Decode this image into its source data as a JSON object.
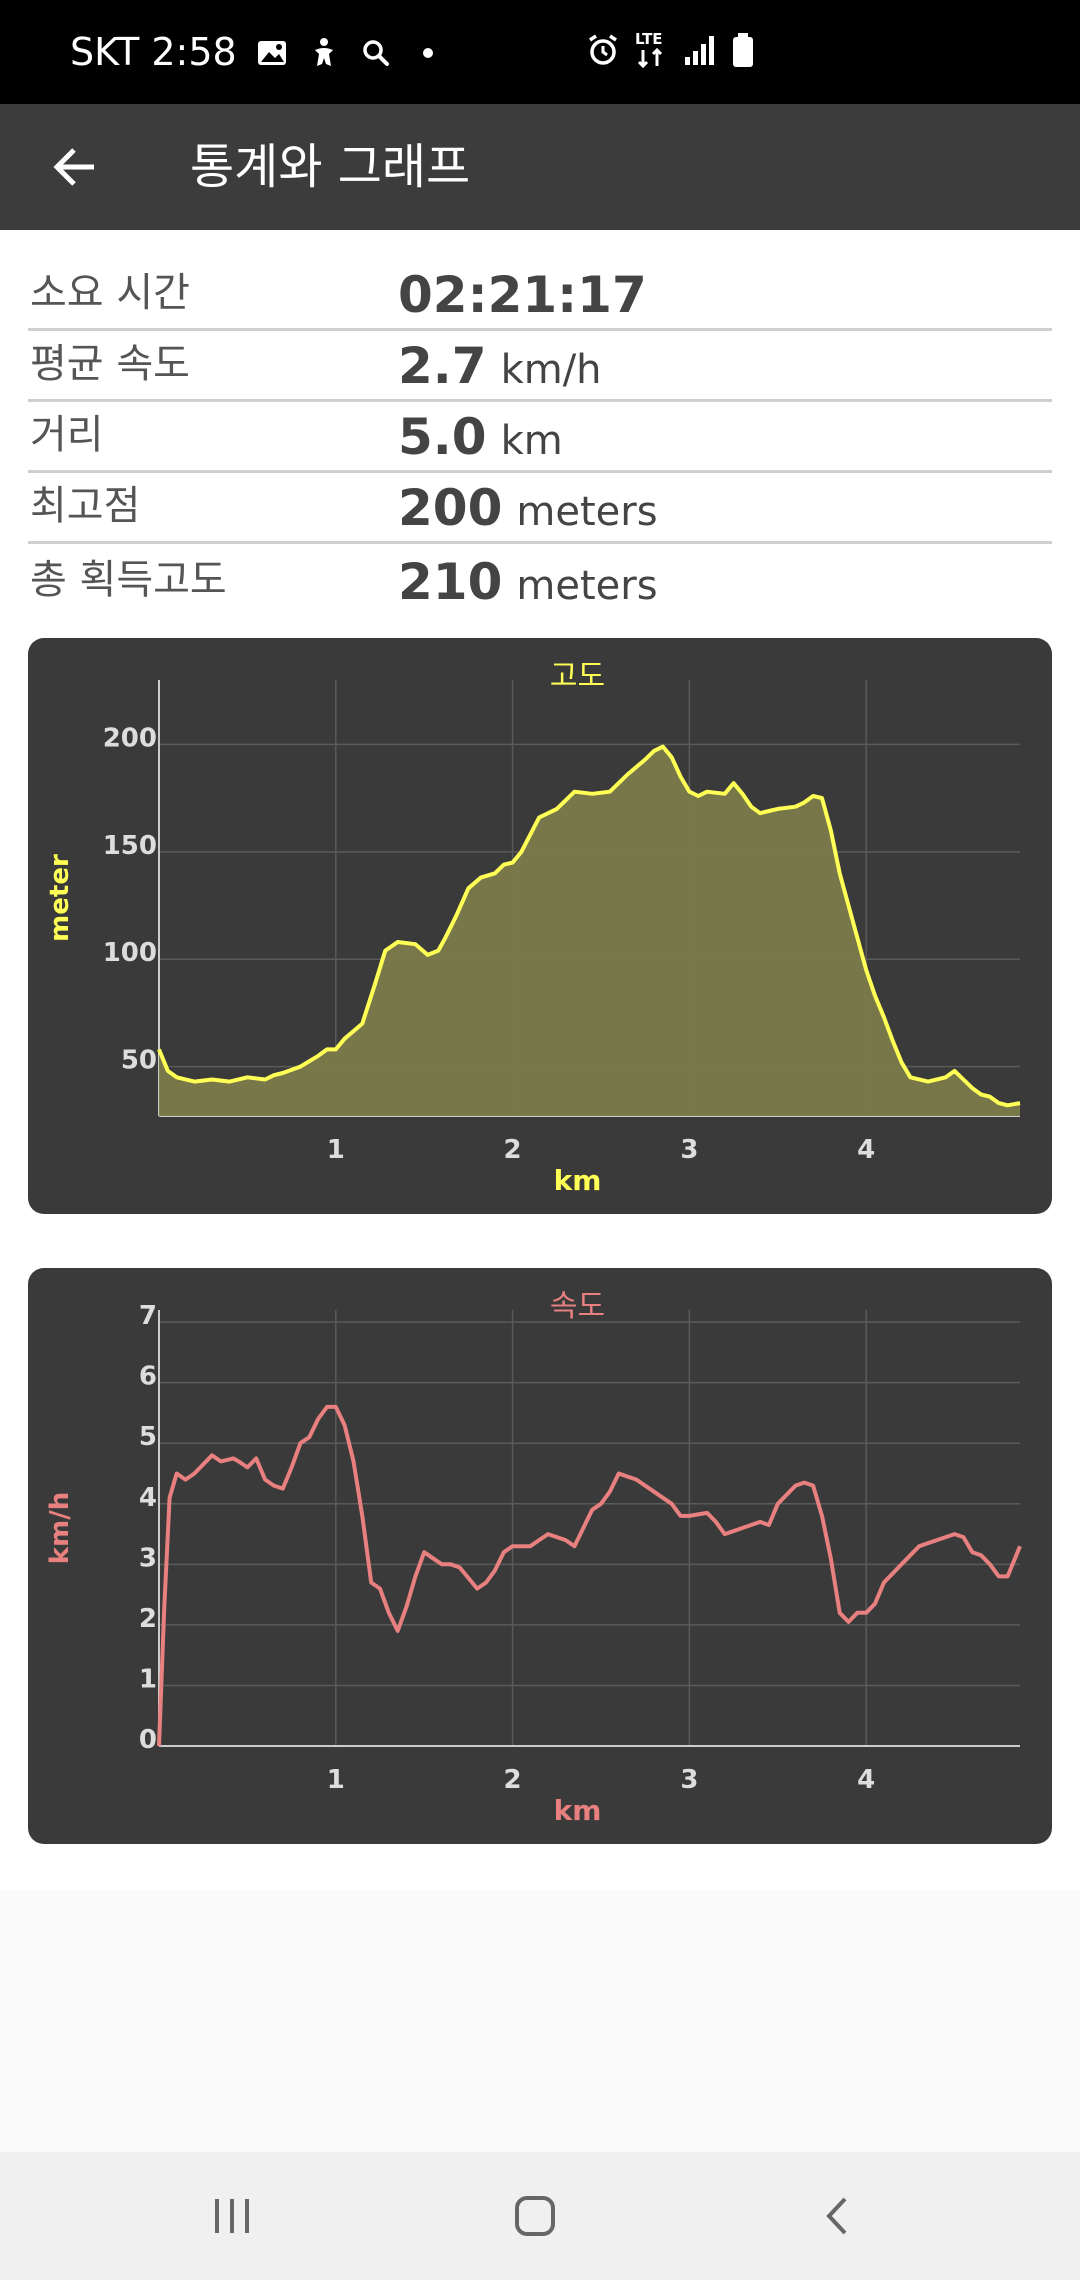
{
  "status_bar": {
    "carrier_time": "SKT 2:58",
    "network_type": "LTE",
    "icons": [
      "gallery-icon",
      "accessibility-icon",
      "search-icon",
      "dot-icon",
      "alarm-icon",
      "lte-icon",
      "signal-icon",
      "battery-icon"
    ]
  },
  "app_bar": {
    "title": "통계와 그래프",
    "back_icon": "arrow-left-icon"
  },
  "stats": [
    {
      "label": "소요 시간",
      "value": "02:21:17",
      "unit": ""
    },
    {
      "label": "평균 속도",
      "value": "2.7",
      "unit": "km/h"
    },
    {
      "label": "거리",
      "value": "5.0",
      "unit": "km"
    },
    {
      "label": "최고점",
      "value": "200",
      "unit": "meters"
    },
    {
      "label": "총 획득고도",
      "value": "210",
      "unit": "meters"
    }
  ],
  "colors": {
    "altitude": "#ffff55",
    "altitude_fill": "#7a7a4a",
    "speed": "#e88080",
    "card_bg": "#3a3a3a",
    "grid": "#5a5a5a",
    "tick": "#dddddd"
  },
  "chart_data": [
    {
      "type": "area",
      "title": "고도",
      "xlabel": "km",
      "ylabel": "meter",
      "xlim": [
        0,
        4.87
      ],
      "ylim": [
        27,
        230
      ],
      "x_ticks": [
        1,
        2,
        3,
        4
      ],
      "y_ticks": [
        50,
        100,
        150,
        200
      ],
      "grid": true,
      "series": [
        {
          "x": [
            0,
            0.05,
            0.1,
            0.2,
            0.3,
            0.4,
            0.5,
            0.6,
            0.65,
            0.7,
            0.8,
            0.9,
            0.95,
            1.0,
            1.05,
            1.15,
            1.22,
            1.28,
            1.35,
            1.45,
            1.52,
            1.58,
            1.62,
            1.68,
            1.75,
            1.82,
            1.9,
            1.95,
            2.0,
            2.05,
            2.1,
            2.15,
            2.25,
            2.35,
            2.45,
            2.55,
            2.65,
            2.75,
            2.8,
            2.85,
            2.9,
            2.95,
            3.0,
            3.05,
            3.1,
            3.2,
            3.25,
            3.3,
            3.35,
            3.4,
            3.45,
            3.5,
            3.6,
            3.65,
            3.7,
            3.75,
            3.8,
            3.85,
            3.9,
            4.0,
            4.05,
            4.1,
            4.15,
            4.2,
            4.25,
            4.35,
            4.45,
            4.5,
            4.55,
            4.6,
            4.65,
            4.7,
            4.75,
            4.8,
            4.87
          ],
          "y": [
            58,
            48,
            45,
            43,
            44,
            43,
            45,
            44,
            46,
            47,
            50,
            55,
            58,
            58,
            63,
            70,
            88,
            104,
            108,
            107,
            102,
            104,
            110,
            120,
            133,
            138,
            140,
            144,
            145,
            150,
            158,
            166,
            170,
            178,
            177,
            178,
            186,
            193,
            197,
            199,
            194,
            185,
            178,
            176,
            178,
            177,
            182,
            177,
            171,
            168,
            169,
            170,
            171,
            173,
            176,
            175,
            160,
            140,
            125,
            95,
            83,
            73,
            62,
            52,
            45,
            43,
            45,
            48,
            44,
            40,
            37,
            36,
            33,
            32,
            33
          ]
        }
      ]
    },
    {
      "type": "line",
      "title": "속도",
      "xlabel": "km",
      "ylabel": "km/h",
      "xlim": [
        0,
        4.87
      ],
      "ylim": [
        0,
        7.2
      ],
      "x_ticks": [
        1,
        2,
        3,
        4
      ],
      "y_ticks": [
        0,
        1,
        2,
        3,
        4,
        5,
        6,
        7
      ],
      "grid": true,
      "series": [
        {
          "x": [
            0,
            0.03,
            0.06,
            0.1,
            0.15,
            0.2,
            0.3,
            0.35,
            0.42,
            0.45,
            0.5,
            0.55,
            0.6,
            0.65,
            0.7,
            0.75,
            0.8,
            0.85,
            0.9,
            0.95,
            1.0,
            1.05,
            1.1,
            1.15,
            1.2,
            1.25,
            1.3,
            1.35,
            1.4,
            1.45,
            1.5,
            1.55,
            1.6,
            1.65,
            1.7,
            1.8,
            1.85,
            1.9,
            1.95,
            2.0,
            2.1,
            2.15,
            2.2,
            2.3,
            2.35,
            2.4,
            2.45,
            2.5,
            2.55,
            2.6,
            2.7,
            2.8,
            2.9,
            2.95,
            3.0,
            3.1,
            3.15,
            3.2,
            3.3,
            3.4,
            3.45,
            3.5,
            3.6,
            3.65,
            3.7,
            3.75,
            3.8,
            3.85,
            3.9,
            3.95,
            4.0,
            4.05,
            4.1,
            4.2,
            4.3,
            4.35,
            4.4,
            4.5,
            4.55,
            4.6,
            4.65,
            4.7,
            4.75,
            4.8,
            4.87
          ],
          "y": [
            0,
            2.3,
            4.1,
            4.5,
            4.4,
            4.5,
            4.8,
            4.7,
            4.75,
            4.7,
            4.6,
            4.75,
            4.4,
            4.3,
            4.25,
            4.6,
            5.0,
            5.1,
            5.4,
            5.6,
            5.6,
            5.3,
            4.7,
            3.8,
            2.7,
            2.6,
            2.2,
            1.9,
            2.3,
            2.8,
            3.2,
            3.1,
            3.0,
            3.0,
            2.95,
            2.6,
            2.7,
            2.9,
            3.2,
            3.3,
            3.3,
            3.4,
            3.5,
            3.4,
            3.3,
            3.6,
            3.9,
            4.0,
            4.2,
            4.5,
            4.4,
            4.2,
            4.0,
            3.8,
            3.8,
            3.85,
            3.7,
            3.5,
            3.6,
            3.7,
            3.65,
            4.0,
            4.3,
            4.35,
            4.3,
            3.8,
            3.1,
            2.2,
            2.05,
            2.2,
            2.2,
            2.35,
            2.7,
            3.0,
            3.3,
            3.35,
            3.4,
            3.5,
            3.45,
            3.2,
            3.15,
            3.0,
            2.8,
            2.8,
            3.3
          ]
        }
      ]
    }
  ]
}
